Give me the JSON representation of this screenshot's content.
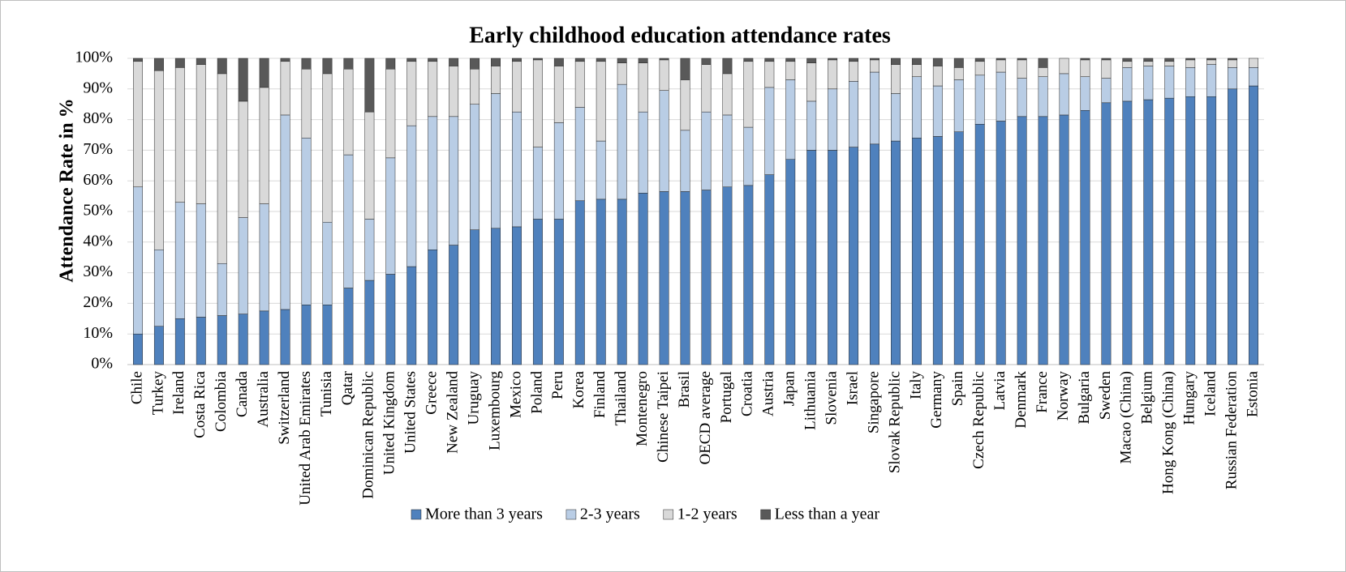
{
  "chart_data": {
    "type": "stacked_bar",
    "title": "Early childhood education attendance rates",
    "y_label": "Attendance Rate in %",
    "categories": [
      "Chile",
      "Turkey",
      "Ireland",
      "Costa Rica",
      "Colombia",
      "Canada",
      "Australia",
      "Switzerland",
      "United Arab Emirates",
      "Tunisia",
      "Qatar",
      "Dominican Republic",
      "United Kingdom",
      "United States",
      "Greece",
      "New Zealand",
      "Uruguay",
      "Luxembourg",
      "Mexico",
      "Poland",
      "Peru",
      "Korea",
      "Finland",
      "Thailand",
      "Montenegro",
      "Chinese Taipei",
      "Brasil",
      "OECD average",
      "Portugal",
      "Croatia",
      "Austria",
      "Japan",
      "Lithuania",
      "Slovenia",
      "Israel",
      "Singapore",
      "Slovak Republic",
      "Italy",
      "Germany",
      "Spain",
      "Czech Republic",
      "Latvia",
      "Denmark",
      "France",
      "Norway",
      "Bulgaria",
      "Sweden",
      "Macao (China)",
      "Belgium",
      "Hong Kong (China)",
      "Hungary",
      "Iceland",
      "Russian Federation",
      "Estonia"
    ],
    "series": [
      {
        "name": "More than 3 years",
        "color": "#4f81bd",
        "values": [
          10,
          12.5,
          15,
          15.5,
          16,
          16.5,
          17.5,
          18,
          19.5,
          19.5,
          25,
          27.5,
          29.5,
          32,
          37.5,
          39,
          44,
          44.5,
          45,
          47.5,
          47.5,
          53.5,
          54,
          54,
          56,
          56.5,
          56.5,
          57,
          58,
          58.5,
          62,
          67,
          70,
          70,
          71,
          72,
          73,
          74,
          74.5,
          76,
          78.5,
          79.5,
          81,
          81,
          81.5,
          83,
          85.5,
          86,
          86.5,
          87,
          87.5,
          87.5,
          90,
          91
        ]
      },
      {
        "name": "2-3 years",
        "color": "#b9cde5",
        "values": [
          48,
          25,
          38,
          37,
          17,
          31.5,
          35,
          63.5,
          54.5,
          27,
          43.5,
          20,
          38,
          46,
          43.5,
          42,
          41,
          44,
          37.5,
          23.5,
          31.5,
          30.5,
          19,
          37.5,
          26.5,
          33,
          20,
          25.5,
          23.5,
          19,
          28.5,
          26,
          16,
          20,
          21.5,
          23.5,
          15.5,
          20,
          16.5,
          17,
          16,
          16,
          12.5,
          13,
          13.5,
          11,
          8,
          11,
          11,
          10.5,
          9.5,
          10.5,
          7,
          6
        ]
      },
      {
        "name": "1-2 years",
        "color": "#d9d9d9",
        "values": [
          41,
          58.5,
          44,
          45.5,
          62,
          38,
          38,
          17.5,
          22.5,
          48.5,
          28,
          35,
          29,
          21,
          18,
          16.5,
          11.5,
          9,
          16.5,
          28.5,
          18.5,
          15,
          26,
          7,
          16,
          10,
          16.5,
          15.5,
          13.5,
          21.5,
          8.5,
          6,
          12.5,
          9.5,
          6.5,
          4,
          9.5,
          4,
          6.5,
          4,
          4.5,
          4,
          6,
          3,
          5,
          5.5,
          6,
          2,
          1.5,
          1.5,
          2.5,
          1.5,
          2.5,
          3
        ]
      },
      {
        "name": "Less than a year",
        "color": "#595959",
        "values": [
          1,
          4,
          3,
          2,
          5,
          14,
          9.5,
          1,
          3.5,
          5,
          3.5,
          17.5,
          3.5,
          1,
          1,
          2.5,
          3.5,
          2.5,
          1,
          0.5,
          2.5,
          1,
          1,
          1.5,
          1.5,
          0.5,
          7,
          2,
          5,
          1,
          1,
          1,
          1.5,
          0.5,
          1,
          0.5,
          2,
          2,
          2.5,
          3,
          1,
          0.5,
          0.5,
          3,
          0,
          0.5,
          0.5,
          1,
          1,
          1,
          0.5,
          0.5,
          0.5,
          0
        ]
      }
    ],
    "ylim": [
      0,
      100
    ],
    "yticks": [
      {
        "value": 0,
        "label": "0%"
      },
      {
        "value": 10,
        "label": "10%"
      },
      {
        "value": 20,
        "label": "20%"
      },
      {
        "value": 30,
        "label": "30%"
      },
      {
        "value": 40,
        "label": "40%"
      },
      {
        "value": 50,
        "label": "50%"
      },
      {
        "value": 60,
        "label": "60%"
      },
      {
        "value": 70,
        "label": "70%"
      },
      {
        "value": 80,
        "label": "80%"
      },
      {
        "value": 90,
        "label": "90%"
      },
      {
        "value": 100,
        "label": "100%"
      }
    ],
    "grid": true,
    "legend": "bottom"
  }
}
